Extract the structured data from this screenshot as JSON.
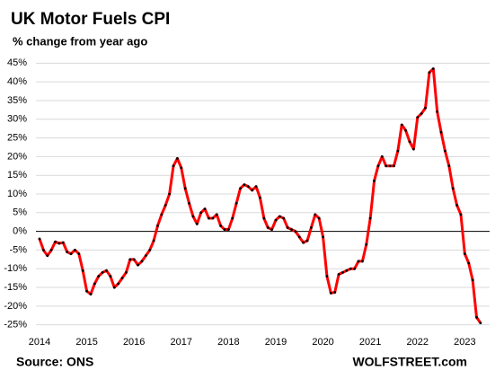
{
  "chart_data": {
    "type": "line",
    "title": "UK Motor  Fuels CPI",
    "subtitle": "% change from year ago",
    "source": "Source: ONS",
    "brand": "WOLFSTREET.com",
    "categories": [
      "2014",
      null,
      null,
      null,
      null,
      null,
      null,
      null,
      null,
      null,
      null,
      null,
      "2015",
      null,
      null,
      null,
      null,
      null,
      null,
      null,
      null,
      null,
      null,
      null,
      "2016",
      null,
      null,
      null,
      null,
      null,
      null,
      null,
      null,
      null,
      null,
      null,
      "2017",
      null,
      null,
      null,
      null,
      null,
      null,
      null,
      null,
      null,
      null,
      null,
      "2018",
      null,
      null,
      null,
      null,
      null,
      null,
      null,
      null,
      null,
      null,
      null,
      "2019",
      null,
      null,
      null,
      null,
      null,
      null,
      null,
      null,
      null,
      null,
      null,
      "2020",
      null,
      null,
      null,
      null,
      null,
      null,
      null,
      null,
      null,
      null,
      null,
      "2021",
      null,
      null,
      null,
      null,
      null,
      null,
      null,
      null,
      null,
      null,
      null,
      "2022",
      null,
      null,
      null,
      null,
      null,
      null,
      null,
      null,
      null,
      null,
      null,
      "2023",
      null,
      null,
      null,
      null
    ],
    "series": [
      {
        "color": "#ff0000",
        "marker_color": "#000000",
        "values": [
          -2,
          -5,
          -6.5,
          -5,
          -2.8,
          -3.2,
          -3,
          -5.5,
          -6,
          -5,
          -6,
          -10.5,
          -16,
          -16.8,
          -14,
          -12,
          -11,
          -10.5,
          -12,
          -15,
          -14,
          -12.5,
          -11,
          -7.5,
          -7.5,
          -9,
          -8,
          -6.5,
          -5,
          -2.5,
          1.5,
          4.5,
          7,
          10,
          17.5,
          19.5,
          17,
          11.5,
          7.5,
          4,
          2,
          5,
          6,
          3.5,
          3.5,
          4.5,
          1.5,
          0.5,
          0.5,
          3.5,
          7.5,
          11.5,
          12.5,
          12,
          11,
          12,
          9,
          3.5,
          1,
          0.5,
          3,
          4,
          3.5,
          1,
          0.5,
          0,
          -1.5,
          -3,
          -2.5,
          1,
          4.5,
          3.5,
          -1.5,
          -12,
          -16.5,
          -16.3,
          -11.5,
          -11,
          -10.5,
          -10,
          -10,
          -8,
          -8,
          -3.5,
          3.5,
          13.5,
          17.5,
          20,
          17.5,
          17.5,
          17.5,
          21.5,
          28.5,
          27,
          24,
          22,
          30.5,
          31.5,
          33,
          42.5,
          43.5,
          32,
          26.5,
          21.5,
          17.5,
          11.5,
          7,
          4.5,
          -6,
          -8.5,
          -13,
          -23,
          -24.5
        ]
      }
    ],
    "ylim": [
      -27,
      47
    ],
    "yticks": [
      {
        "value": -25,
        "label": "-25%"
      },
      {
        "value": -20,
        "label": "-20%"
      },
      {
        "value": -15,
        "label": "-15%"
      },
      {
        "value": -10,
        "label": "-10%"
      },
      {
        "value": -5,
        "label": "-5%"
      },
      {
        "value": 0,
        "label": "0%"
      },
      {
        "value": 5,
        "label": "5%"
      },
      {
        "value": 10,
        "label": "10%"
      },
      {
        "value": 15,
        "label": "15%"
      },
      {
        "value": 20,
        "label": "20%"
      },
      {
        "value": 25,
        "label": "25%"
      },
      {
        "value": 30,
        "label": "30%"
      },
      {
        "value": 35,
        "label": "35%"
      },
      {
        "value": 40,
        "label": "40%"
      },
      {
        "value": 45,
        "label": "45%"
      }
    ],
    "grid": true
  }
}
